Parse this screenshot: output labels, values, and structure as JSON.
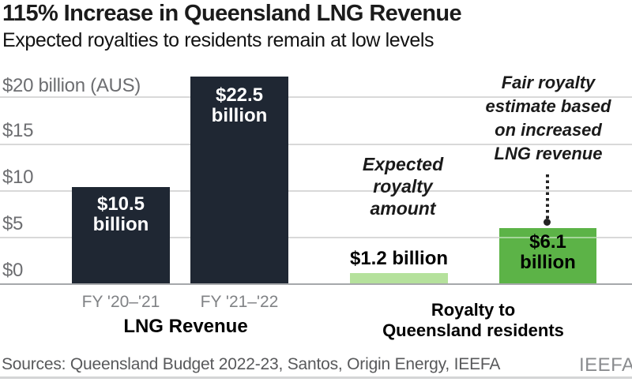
{
  "header": {
    "title": "115% Increase in Queensland LNG Revenue",
    "subtitle": "Expected royalties to residents remain at low levels"
  },
  "chart_data": {
    "type": "bar",
    "title": "115% Increase in Queensland LNG Revenue",
    "subtitle": "Expected royalties to residents remain at low levels",
    "unit": "billion (AUS dollars)",
    "ylim": [
      0,
      23.8
    ],
    "grid": true,
    "ytick_values": [
      20,
      15,
      10,
      5,
      0
    ],
    "ytick_labels": {
      "t20": "$20 billion (AUS)",
      "t15": "$15",
      "t10": "$10",
      "t5": "$5",
      "t0": "$0"
    },
    "groups": [
      {
        "label": "LNG Revenue",
        "categories": [
          "FY '20–'21",
          "FY '21–'22"
        ],
        "values": [
          10.5,
          22.5
        ]
      },
      {
        "label": "Royalty to Queensland residents",
        "categories": [
          "Expected royalty amount",
          "Fair royalty estimate based on increased LNG revenue"
        ],
        "values": [
          1.2,
          6.1
        ]
      }
    ],
    "bars": [
      {
        "category": "FY '20–'21",
        "value": 10.5,
        "label": "$10.5 billion",
        "label_wrapped": "$10.5\nbillion",
        "color": "#1f2733",
        "label_color": "#ffffff"
      },
      {
        "category": "FY '21–'22",
        "value": 22.5,
        "label": "$22.5 billion",
        "label_wrapped": "$22.5\nbillion",
        "color": "#1f2733",
        "label_color": "#ffffff"
      },
      {
        "category": "Expected royalty amount",
        "value": 1.2,
        "label": "$1.2 billion",
        "color": "#b5e19c",
        "label_color": "#000000",
        "label_position": "above"
      },
      {
        "category": "Fair royalty estimate based on increased LNG revenue",
        "value": 6.1,
        "label": "$6.1 billion",
        "label_wrapped": "$6.1\nbillion",
        "color": "#5cb347",
        "label_color": "#000000"
      }
    ],
    "xtick_labels": {
      "fy20": "FY '20–'21",
      "fy21": "FY '21–'22"
    },
    "group_axis_labels": {
      "lng": "LNG Revenue",
      "royalty": "Royalty to\nQueensland residents"
    },
    "annotations": {
      "expected": "Expected\nroyalty\namount",
      "fair": "Fair royalty\nestimate based\non increased\nLNG revenue"
    },
    "legend_position": "none"
  },
  "footer": {
    "source": "Sources: Queensland Budget 2022-23, Santos, Origin Energy, IEEFA",
    "logo": "IEEFA"
  },
  "colors": {
    "bar_navy": "#1f2733",
    "bar_light_green": "#b5e19c",
    "bar_dark_green": "#5cb347",
    "gridline": "#d9d9d9",
    "axis_line": "#a6a8ab",
    "ytick_text": "#6d6e71",
    "xtick_text": "#808285",
    "source_text": "#58595b",
    "logo_text": "#8a8c8f"
  }
}
